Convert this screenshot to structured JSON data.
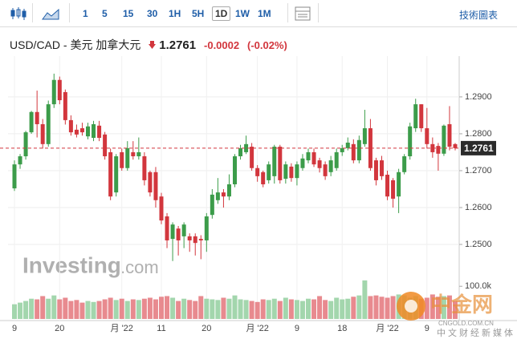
{
  "toolbar": {
    "intervals": [
      "1",
      "5",
      "15",
      "30",
      "1H",
      "5H",
      "1D",
      "1W",
      "1M"
    ],
    "selected": "1D",
    "tools": "技術圖表"
  },
  "header": {
    "symbol": "USD/CAD - 美元 加拿大元",
    "price": "1.2761",
    "change": "-0.0002",
    "change_pct": "(-0.02%)"
  },
  "watermark": {
    "logo": "Investing",
    "logo_suffix": ".com",
    "site": "中金网",
    "site_url": "CNGOLD.COM.CN",
    "site_tagline": "中文财经新媒体"
  },
  "chart_data": {
    "type": "candlestick",
    "categories": [
      "9",
      null,
      null,
      null,
      null,
      null,
      null,
      null,
      "20",
      null,
      null,
      null,
      null,
      null,
      null,
      null,
      null,
      null,
      null,
      "月 '22",
      null,
      null,
      null,
      null,
      null,
      null,
      "11",
      null,
      null,
      null,
      null,
      null,
      null,
      null,
      "20",
      null,
      null,
      null,
      null,
      null,
      null,
      null,
      null,
      "月 '22",
      null,
      null,
      null,
      null,
      null,
      null,
      "9",
      null,
      null,
      null,
      null,
      null,
      null,
      null,
      "18",
      null,
      null,
      null,
      null,
      null,
      null,
      null,
      "月 '22",
      null,
      null,
      null,
      null,
      null,
      null,
      "9",
      null,
      null,
      null,
      null,
      null
    ],
    "open": [
      1.2652,
      1.2717,
      1.2739,
      1.2804,
      1.2859,
      1.2826,
      1.2772,
      1.288,
      1.2946,
      1.2913,
      1.2837,
      1.2811,
      1.2815,
      1.2793,
      1.2789,
      1.2822,
      1.2798,
      1.275,
      1.2641,
      1.275,
      1.2707,
      1.275,
      1.2739,
      1.2739,
      1.2696,
      1.2696,
      1.263,
      1.2576,
      1.2515,
      1.2543,
      1.2522,
      1.2522,
      1.2522,
      1.2515,
      1.2511,
      1.258,
      1.262,
      1.2641,
      1.263,
      1.2663,
      1.2739,
      1.275,
      1.2765,
      1.2707,
      1.2696,
      1.2674,
      1.2685,
      1.2765,
      1.2678,
      1.2711,
      1.268,
      1.2707,
      1.2728,
      1.275,
      1.2728,
      1.2717,
      1.2696,
      1.2707,
      1.275,
      1.2761,
      1.2772,
      1.2728,
      1.2772,
      1.2815,
      1.2728,
      1.2728,
      1.2689,
      1.2674,
      1.263,
      1.2696,
      1.2739,
      1.2815,
      1.288,
      1.2815,
      1.2772,
      1.2767,
      1.2746,
      1.2826,
      1.2772
    ],
    "high": [
      1.2728,
      1.2745,
      1.2808,
      1.2862,
      1.2917,
      1.284,
      1.289,
      1.2963,
      1.2955,
      1.292,
      1.285,
      1.2825,
      1.283,
      1.283,
      1.2835,
      1.2835,
      1.2805,
      1.276,
      1.2745,
      1.276,
      1.278,
      1.278,
      1.279,
      1.275,
      1.27,
      1.271,
      1.264,
      1.2585,
      1.256,
      1.255,
      1.256,
      1.253,
      1.253,
      1.2525,
      1.2585,
      1.265,
      1.268,
      1.265,
      1.269,
      1.2745,
      1.277,
      1.2795,
      1.2775,
      1.2715,
      1.27,
      1.2725,
      1.277,
      1.277,
      1.2725,
      1.272,
      1.2725,
      1.2745,
      1.276,
      1.276,
      1.2735,
      1.2725,
      1.274,
      1.276,
      1.277,
      1.279,
      1.2785,
      1.2795,
      1.2865,
      1.284,
      1.2735,
      1.274,
      1.27,
      1.268,
      1.2705,
      1.2745,
      1.283,
      1.2895,
      1.288,
      1.287,
      1.279,
      1.2775,
      1.2825,
      1.2875,
      1.2775
    ],
    "low": [
      1.2645,
      1.2705,
      1.273,
      1.28,
      1.279,
      1.276,
      1.2765,
      1.287,
      1.288,
      1.2825,
      1.2795,
      1.279,
      1.2795,
      1.2785,
      1.278,
      1.278,
      1.273,
      1.262,
      1.263,
      1.27,
      1.27,
      1.273,
      1.273,
      1.266,
      1.263,
      1.26,
      1.2555,
      1.249,
      1.2455,
      1.247,
      1.249,
      1.248,
      1.247,
      1.246,
      1.248,
      1.257,
      1.261,
      1.26,
      1.262,
      1.2655,
      1.273,
      1.2745,
      1.27,
      1.267,
      1.2655,
      1.2665,
      1.2665,
      1.2665,
      1.2665,
      1.267,
      1.266,
      1.27,
      1.272,
      1.271,
      1.2695,
      1.2675,
      1.2685,
      1.27,
      1.274,
      1.2755,
      1.272,
      1.272,
      1.2765,
      1.27,
      1.266,
      1.2675,
      1.262,
      1.26,
      1.2585,
      1.269,
      1.273,
      1.2805,
      1.2805,
      1.276,
      1.2735,
      1.27,
      1.274,
      1.2755,
      1.2755
    ],
    "close": [
      1.2717,
      1.2739,
      1.2804,
      1.2859,
      1.2826,
      1.2772,
      1.288,
      1.2946,
      1.2891,
      1.2837,
      1.2804,
      1.2798,
      1.2804,
      1.282,
      1.2826,
      1.2789,
      1.2739,
      1.263,
      1.2739,
      1.2707,
      1.2761,
      1.2739,
      1.275,
      1.2674,
      1.2641,
      1.262,
      1.2565,
      1.2511,
      1.2554,
      1.2511,
      1.2554,
      1.2511,
      1.2504,
      1.2511,
      1.2576,
      1.2635,
      1.2641,
      1.263,
      1.2663,
      1.2739,
      1.2761,
      1.2772,
      1.2707,
      1.2685,
      1.2663,
      1.2717,
      1.2765,
      1.2674,
      1.2717,
      1.268,
      1.2717,
      1.2733,
      1.275,
      1.2717,
      1.2707,
      1.2685,
      1.2728,
      1.275,
      1.2761,
      1.2776,
      1.2728,
      1.2783,
      1.2815,
      1.2707,
      1.2674,
      1.2685,
      1.263,
      1.2624,
      1.2696,
      1.2739,
      1.282,
      1.288,
      1.2815,
      1.2772,
      1.275,
      1.2746,
      1.2822,
      1.2765,
      1.2761
    ],
    "volume": [
      45000,
      50000,
      55000,
      62000,
      60000,
      70000,
      62000,
      72000,
      60000,
      65000,
      55000,
      58000,
      50000,
      55000,
      52000,
      55000,
      60000,
      65000,
      58000,
      62000,
      55000,
      60000,
      58000,
      62000,
      65000,
      60000,
      68000,
      70000,
      65000,
      55000,
      62000,
      58000,
      55000,
      70000,
      62000,
      60000,
      58000,
      65000,
      62000,
      72000,
      60000,
      58000,
      55000,
      52000,
      60000,
      58000,
      62000,
      55000,
      65000,
      60000,
      58000,
      55000,
      62000,
      60000,
      70000,
      58000,
      55000,
      65000,
      60000,
      62000,
      68000,
      72000,
      118000,
      70000,
      72000,
      68000,
      65000,
      70000,
      75000,
      72000,
      65000,
      70000,
      62000,
      65000,
      75000,
      68000,
      70000,
      72000,
      55000
    ],
    "up_color": "#3c9c4a",
    "down_color": "#d2363d",
    "up_volume_color": "#a3d6ad",
    "down_volume_color": "#e88a8f",
    "ylim": [
      1.2424,
      1.2978
    ],
    "yticks": [
      {
        "value": 1.29,
        "label": "1.2900"
      },
      {
        "value": 1.28,
        "label": "1.2800"
      },
      {
        "value": 1.27,
        "label": "1.2700"
      },
      {
        "value": 1.26,
        "label": "1.2600"
      },
      {
        "value": 1.25,
        "label": "1.2500"
      }
    ],
    "y2lim": [
      0,
      130000
    ],
    "y2ticks": [
      {
        "value": 100000,
        "label": "100.0k"
      }
    ],
    "last_price": {
      "value": 1.2761,
      "label": "1.2761"
    },
    "grid": true
  }
}
